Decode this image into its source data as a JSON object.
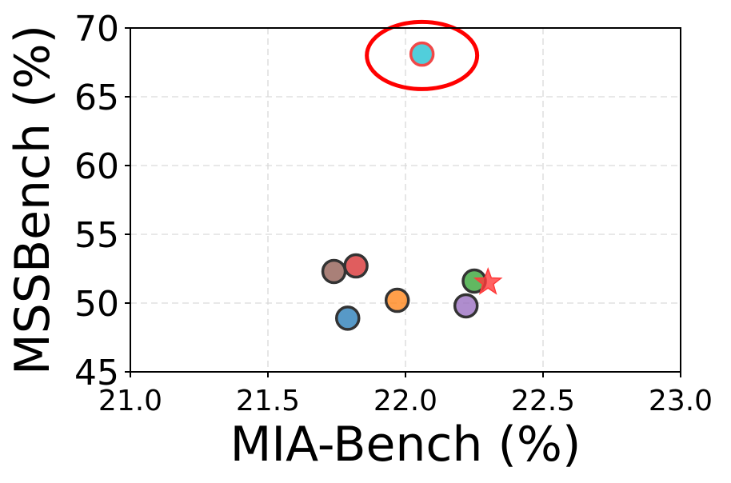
{
  "chart_data": {
    "type": "scatter",
    "title": "",
    "xlabel": "MIA-Bench (%)",
    "ylabel": "MSSBench (%)",
    "xlim": [
      21.0,
      23.0
    ],
    "ylim": [
      45,
      70
    ],
    "xticks": [
      "21.0",
      "21.5",
      "22.0",
      "22.5",
      "23.0"
    ],
    "yticks": [
      "45",
      "50",
      "55",
      "60",
      "65",
      "70"
    ],
    "grid": true,
    "points": [
      {
        "x": 21.79,
        "y": 48.9,
        "color": "#1f77b4",
        "marker": "circle"
      },
      {
        "x": 21.74,
        "y": 52.3,
        "color": "#8c564b",
        "marker": "circle"
      },
      {
        "x": 21.82,
        "y": 52.7,
        "color": "#d62728",
        "marker": "circle"
      },
      {
        "x": 21.97,
        "y": 50.2,
        "color": "#ff7f0e",
        "marker": "circle"
      },
      {
        "x": 22.22,
        "y": 49.8,
        "color": "#9467bd",
        "marker": "circle"
      },
      {
        "x": 22.25,
        "y": 51.6,
        "color": "#2ca02c",
        "marker": "circle"
      },
      {
        "x": 22.06,
        "y": 68.1,
        "color": "#17becf",
        "marker": "circle",
        "edge": "#f04848"
      },
      {
        "x": 22.3,
        "y": 51.5,
        "color": "#ff3b3b",
        "marker": "star"
      }
    ],
    "highlight": {
      "x": 22.06,
      "y": 68.0,
      "color": "#ff0000",
      "shape": "ellipse"
    }
  }
}
